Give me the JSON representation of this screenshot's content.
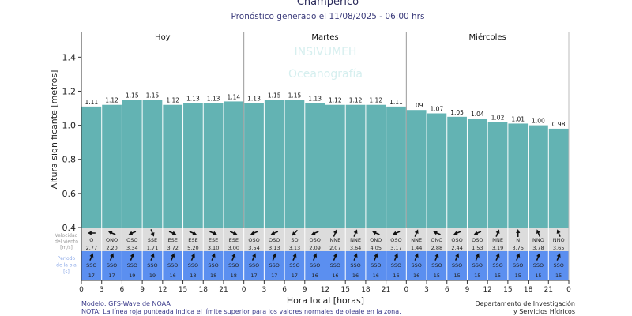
{
  "title": "Champerico",
  "subtitle": "Pronóstico generado el 11/08/2025 - 06:00 hrs",
  "watermark": [
    "INSIVUMEH",
    "Oceanografía"
  ],
  "footer": {
    "model": "Modelo: GFS-Wave de NOAA",
    "note": "NOTA: La línea roja punteada indica el límite superior para los valores normales de oleaje en la zona.",
    "dept_line1": "Departamento de Investigación",
    "dept_line2": "y Servicios Hídricos"
  },
  "chart_data": {
    "type": "bar",
    "ylabel": "Altura significante [metros]",
    "xlabel": "Hora local [horas]",
    "ylim": [
      0.4,
      1.55
    ],
    "yticks": [
      "0.4",
      "0.6",
      "0.8",
      "1.0",
      "1.2",
      "1.4"
    ],
    "days": [
      "Hoy",
      "Martes",
      "Miércoles"
    ],
    "xticks": [
      "0",
      "3",
      "6",
      "9",
      "12",
      "15",
      "18",
      "21",
      "0",
      "3",
      "6",
      "9",
      "12",
      "15",
      "18",
      "21",
      "0",
      "3",
      "6",
      "9",
      "12",
      "15",
      "18",
      "21",
      "0"
    ],
    "bar_color": "#63b3b3",
    "values": [
      1.11,
      1.12,
      1.15,
      1.15,
      1.12,
      1.13,
      1.13,
      1.14,
      1.13,
      1.15,
      1.15,
      1.13,
      1.12,
      1.12,
      1.12,
      1.11,
      1.09,
      1.07,
      1.05,
      1.04,
      1.02,
      1.01,
      1.0,
      0.98
    ],
    "wind_row_label": [
      "Velocidad",
      "del viento",
      "[m/s]"
    ],
    "wind_dir": [
      "O",
      "ONO",
      "OSO",
      "SSE",
      "ESE",
      "ESE",
      "ESE",
      "ESE",
      "OSO",
      "OSO",
      "SO",
      "OSO",
      "NNE",
      "NNE",
      "ONO",
      "OSO",
      "NNE",
      "ONO",
      "OSO",
      "OSO",
      "NNE",
      "N",
      "NNO",
      "NNO"
    ],
    "wind_speed": [
      "2.77",
      "2.20",
      "3.34",
      "1.71",
      "3.72",
      "5.20",
      "3.10",
      "3.00",
      "3.54",
      "3.13",
      "3.13",
      "2.09",
      "2.07",
      "3.64",
      "4.05",
      "3.17",
      "1.44",
      "2.88",
      "2.44",
      "1.53",
      "3.19",
      "3.75",
      "3.78",
      "3.65"
    ],
    "wave_row_label": [
      "Periodo",
      "de la ola",
      "[s]"
    ],
    "wave_dir": [
      "SSO",
      "SSO",
      "SSO",
      "SSO",
      "SSO",
      "SSO",
      "SSO",
      "SSO",
      "SSO",
      "SSO",
      "SSO",
      "SSO",
      "SSO",
      "SSO",
      "SSO",
      "SSO",
      "SSO",
      "SSO",
      "SSO",
      "SSO",
      "SSO",
      "SSO",
      "SSO",
      "SSO"
    ],
    "wave_period": [
      "17",
      "17",
      "19",
      "19",
      "16",
      "18",
      "18",
      "18",
      "17",
      "17",
      "17",
      "16",
      "16",
      "16",
      "16",
      "16",
      "16",
      "15",
      "15",
      "15",
      "15",
      "15",
      "15",
      "15"
    ],
    "wind_row_color": "#dcdcdc",
    "wave_row_color": "#5b8ff0"
  }
}
